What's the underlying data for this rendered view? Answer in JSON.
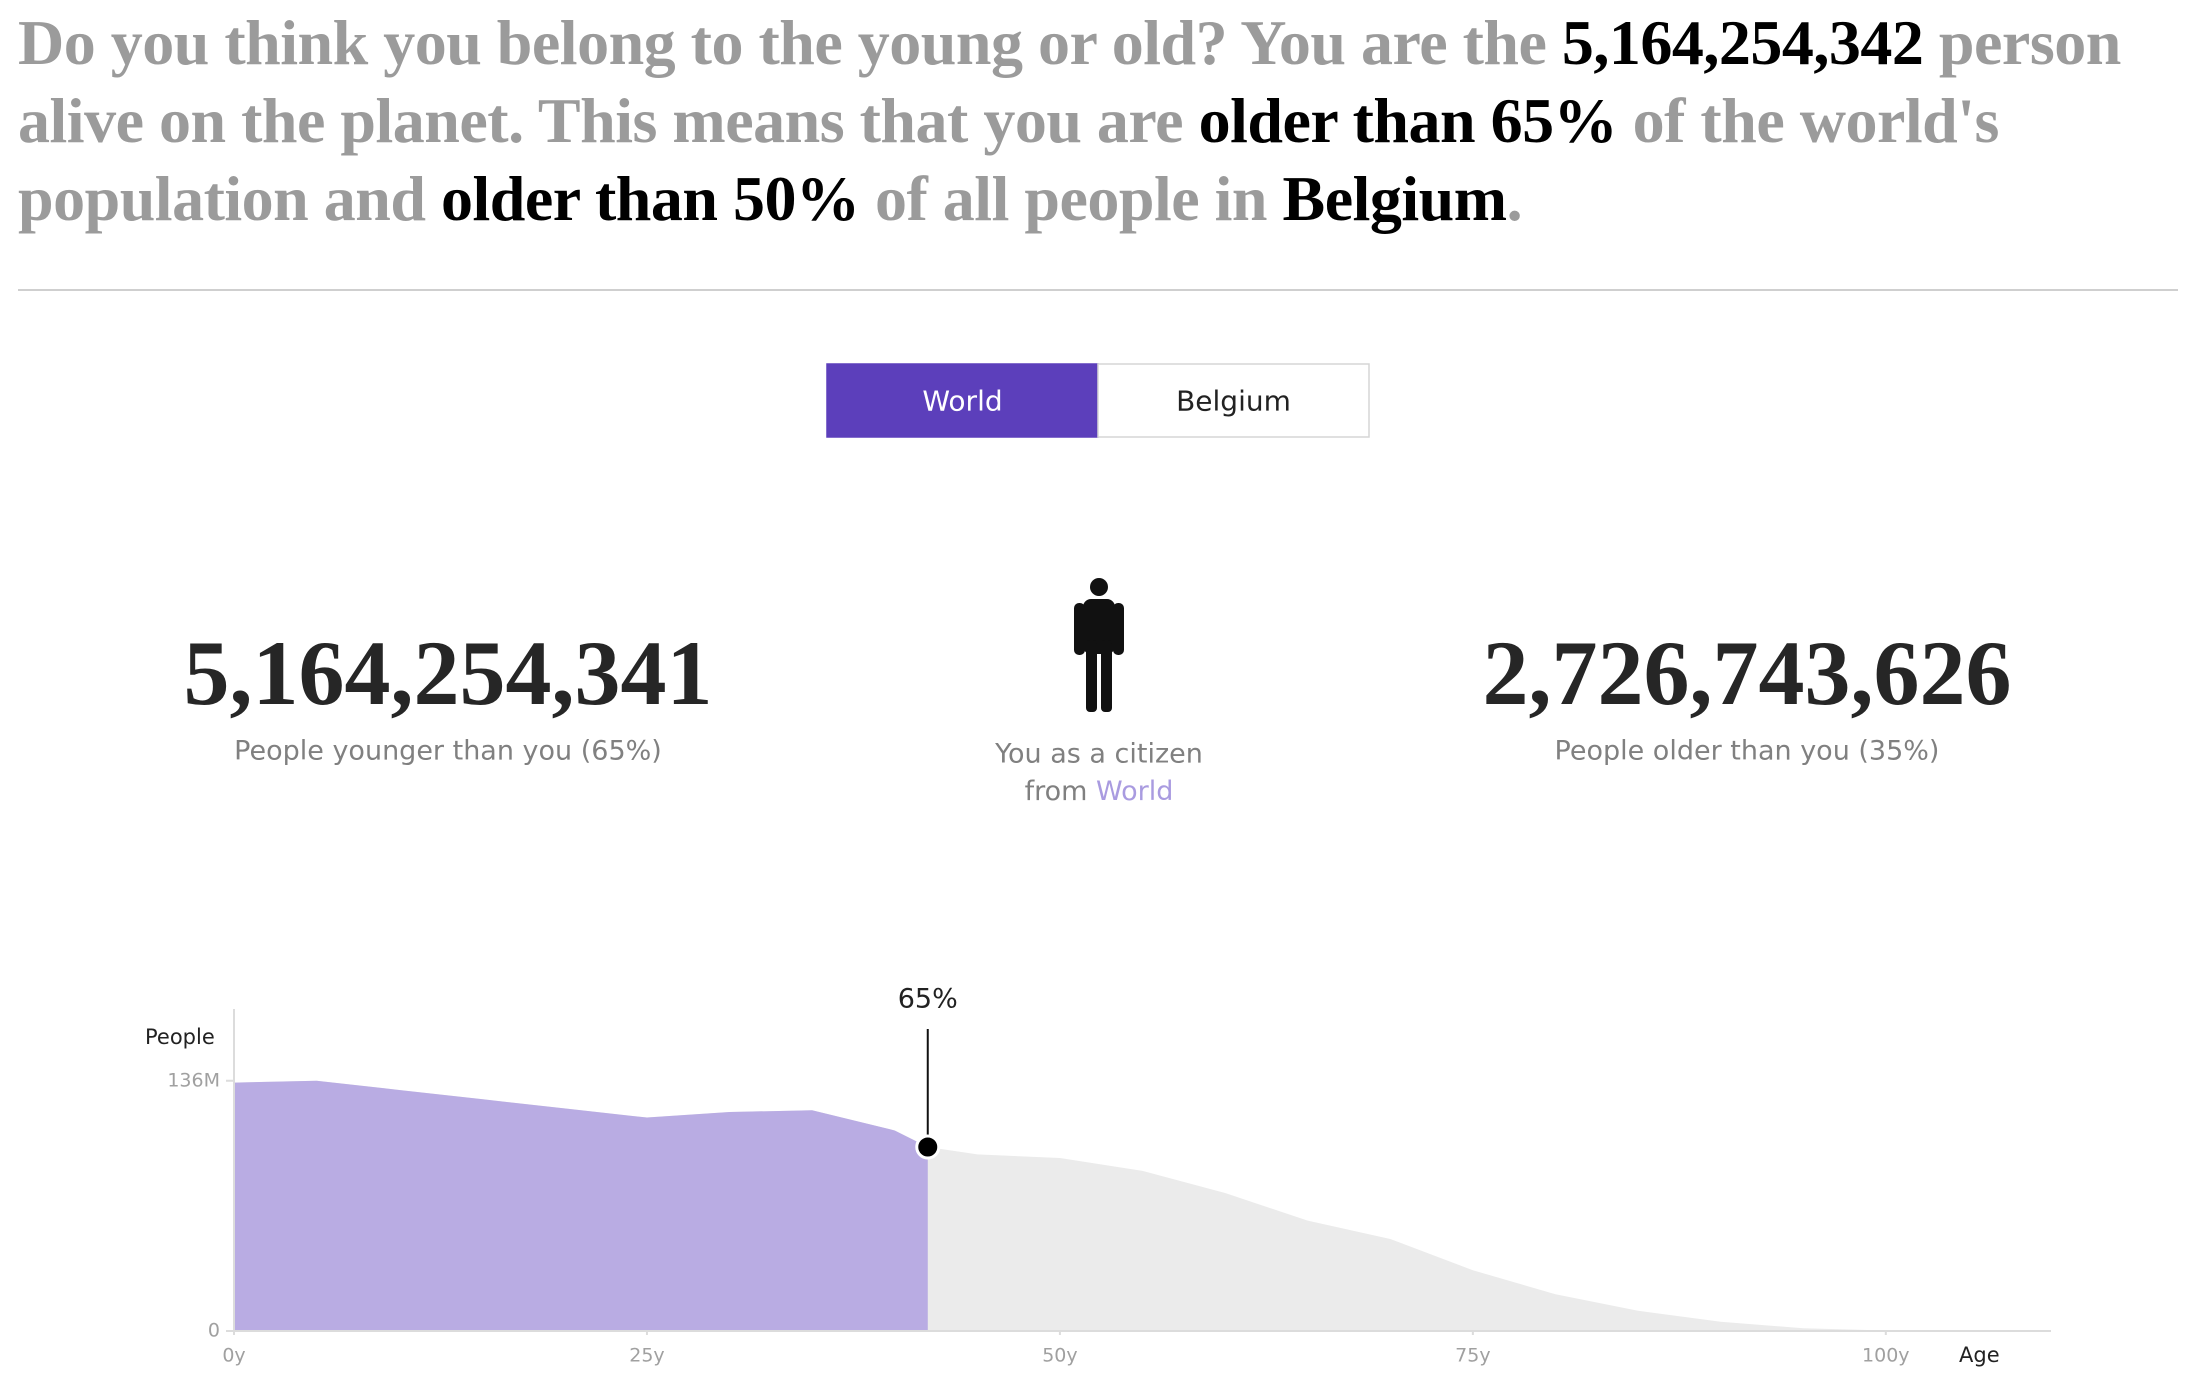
{
  "headline": {
    "segments": [
      {
        "text": "Do you think you belong to the young or old? You are the ",
        "emphasis": false
      },
      {
        "text": "5,164,254,342",
        "emphasis": true
      },
      {
        "text": " person alive on the planet. This means that you are ",
        "emphasis": false
      },
      {
        "text": "older than 65%",
        "emphasis": true
      },
      {
        "text": " of the world's population and ",
        "emphasis": false
      },
      {
        "text": "older than 50%",
        "emphasis": true
      },
      {
        "text": " of all people in ",
        "emphasis": false
      },
      {
        "text": "Belgium",
        "emphasis": true
      },
      {
        "text": ".",
        "emphasis": false
      }
    ]
  },
  "toggle": {
    "options": [
      "World",
      "Belgium"
    ],
    "active": "World",
    "active_color": "#5c3fbb"
  },
  "stats": {
    "younger": {
      "value": "5,164,254,341",
      "label": "People younger than you (65%)"
    },
    "you": {
      "line1": "You as a citizen",
      "line2": "from ",
      "place": "World"
    },
    "older": {
      "value": "2,726,743,626",
      "label": "People older than you (35%)"
    }
  },
  "chart_data": {
    "type": "area",
    "y_label": "People",
    "x_label": "Age",
    "x": [
      0,
      5,
      10,
      15,
      20,
      25,
      30,
      35,
      40,
      42,
      45,
      50,
      55,
      60,
      65,
      70,
      75,
      80,
      85,
      90,
      95,
      100
    ],
    "values": [
      135000000,
      136000000,
      131000000,
      126000000,
      121000000,
      116000000,
      119000000,
      120000000,
      109000000,
      100000000,
      96000000,
      94000000,
      87000000,
      75000000,
      60000000,
      50000000,
      33000000,
      20000000,
      11000000,
      5000000,
      1500000,
      300000
    ],
    "xlim": [
      0,
      110
    ],
    "ylim": [
      0,
      175000000
    ],
    "xticks": [
      {
        "value": 0,
        "label": "0y"
      },
      {
        "value": 25,
        "label": "25y"
      },
      {
        "value": 50,
        "label": "50y"
      },
      {
        "value": 75,
        "label": "75y"
      },
      {
        "value": 100,
        "label": "100y"
      }
    ],
    "yticks": [
      0,
      {
        "value": 136000000,
        "label": "136M"
      }
    ],
    "color": "#ebebeb",
    "highlight_color": "#b9ace3",
    "marker": {
      "x": 42,
      "y": 100000000,
      "label": "65%"
    }
  }
}
